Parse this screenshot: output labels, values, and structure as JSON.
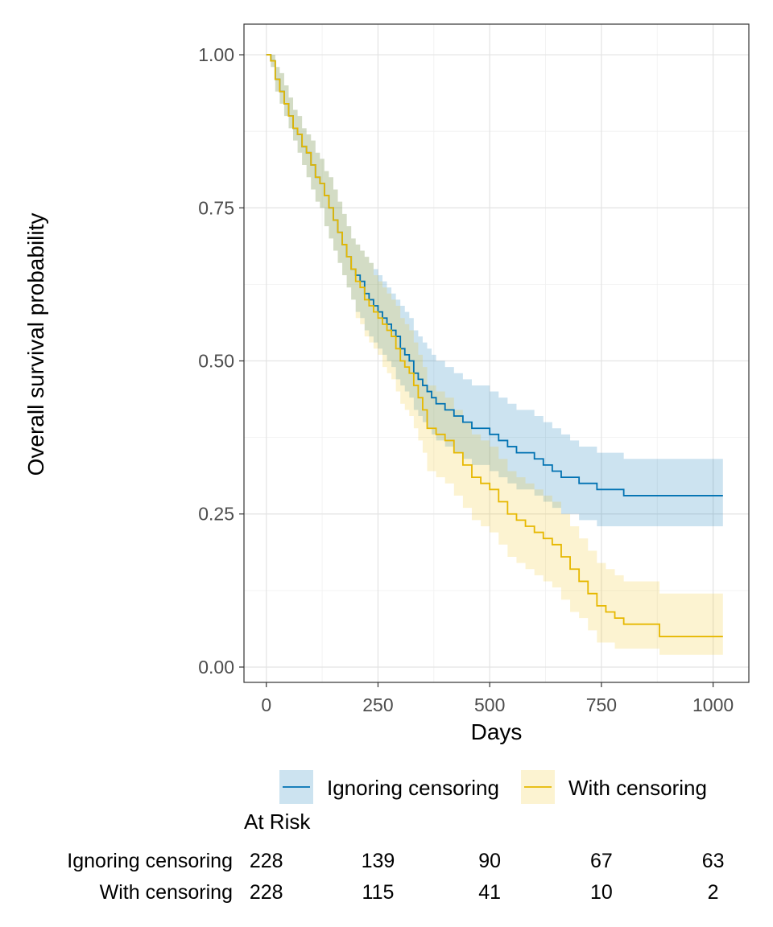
{
  "chart_data": {
    "type": "line",
    "subtype": "kaplan-meier-step",
    "xlabel": "Days",
    "ylabel": "Overall survival probability",
    "xlim": [
      -50,
      1080
    ],
    "ylim": [
      -0.025,
      1.05
    ],
    "x_ticks": [
      0,
      250,
      500,
      750,
      1000
    ],
    "x_tick_labels": [
      "0",
      "250",
      "500",
      "750",
      "1000"
    ],
    "y_ticks": [
      0,
      0.25,
      0.5,
      0.75,
      1.0
    ],
    "y_tick_labels": [
      "0.00",
      "0.25",
      "0.50",
      "0.75",
      "1.00"
    ],
    "grid": true,
    "legend_position": "bottom",
    "series": [
      {
        "name": "Ignoring censoring",
        "color": "#0072B2",
        "band_color": "#0072B2",
        "x": [
          0,
          10,
          20,
          30,
          40,
          50,
          60,
          70,
          80,
          90,
          100,
          110,
          120,
          130,
          140,
          150,
          160,
          170,
          180,
          190,
          200,
          210,
          220,
          230,
          240,
          250,
          260,
          270,
          280,
          290,
          300,
          310,
          320,
          330,
          340,
          350,
          360,
          370,
          380,
          400,
          420,
          440,
          460,
          480,
          500,
          520,
          540,
          560,
          580,
          600,
          620,
          640,
          660,
          680,
          700,
          720,
          740,
          760,
          780,
          800,
          850,
          880,
          950,
          1022
        ],
        "y": [
          1.0,
          0.99,
          0.96,
          0.94,
          0.92,
          0.9,
          0.88,
          0.87,
          0.85,
          0.84,
          0.82,
          0.8,
          0.79,
          0.77,
          0.75,
          0.73,
          0.71,
          0.69,
          0.67,
          0.65,
          0.64,
          0.63,
          0.61,
          0.6,
          0.59,
          0.58,
          0.57,
          0.56,
          0.55,
          0.54,
          0.52,
          0.51,
          0.5,
          0.48,
          0.47,
          0.46,
          0.45,
          0.44,
          0.43,
          0.42,
          0.41,
          0.4,
          0.39,
          0.39,
          0.38,
          0.37,
          0.36,
          0.35,
          0.35,
          0.34,
          0.33,
          0.32,
          0.31,
          0.31,
          0.3,
          0.3,
          0.29,
          0.29,
          0.29,
          0.28,
          0.28,
          0.28,
          0.28,
          0.28
        ],
        "lower": [
          1.0,
          0.98,
          0.94,
          0.92,
          0.9,
          0.88,
          0.86,
          0.84,
          0.82,
          0.8,
          0.78,
          0.76,
          0.75,
          0.72,
          0.7,
          0.68,
          0.66,
          0.64,
          0.62,
          0.6,
          0.58,
          0.57,
          0.55,
          0.54,
          0.53,
          0.52,
          0.51,
          0.5,
          0.49,
          0.47,
          0.46,
          0.45,
          0.44,
          0.42,
          0.41,
          0.4,
          0.39,
          0.38,
          0.37,
          0.36,
          0.35,
          0.34,
          0.33,
          0.33,
          0.32,
          0.31,
          0.3,
          0.29,
          0.29,
          0.28,
          0.27,
          0.26,
          0.25,
          0.25,
          0.24,
          0.24,
          0.23,
          0.23,
          0.23,
          0.23,
          0.23,
          0.23,
          0.23,
          0.23
        ],
        "upper": [
          1.0,
          1.0,
          0.98,
          0.97,
          0.95,
          0.93,
          0.91,
          0.9,
          0.88,
          0.87,
          0.86,
          0.84,
          0.83,
          0.81,
          0.8,
          0.78,
          0.76,
          0.74,
          0.72,
          0.7,
          0.69,
          0.68,
          0.67,
          0.66,
          0.65,
          0.64,
          0.63,
          0.62,
          0.61,
          0.6,
          0.59,
          0.58,
          0.57,
          0.55,
          0.54,
          0.53,
          0.52,
          0.51,
          0.5,
          0.49,
          0.48,
          0.47,
          0.46,
          0.46,
          0.45,
          0.44,
          0.43,
          0.42,
          0.42,
          0.41,
          0.4,
          0.39,
          0.38,
          0.37,
          0.36,
          0.36,
          0.35,
          0.35,
          0.35,
          0.34,
          0.34,
          0.34,
          0.34,
          0.34
        ]
      },
      {
        "name": "With censoring",
        "color": "#E6B800",
        "band_color": "#F0C419",
        "x": [
          0,
          10,
          20,
          30,
          40,
          50,
          60,
          70,
          80,
          90,
          100,
          110,
          120,
          130,
          140,
          150,
          160,
          170,
          180,
          190,
          200,
          210,
          220,
          230,
          240,
          250,
          260,
          270,
          280,
          290,
          300,
          310,
          320,
          330,
          340,
          350,
          360,
          380,
          400,
          420,
          440,
          460,
          480,
          500,
          520,
          540,
          560,
          580,
          600,
          620,
          640,
          660,
          680,
          700,
          720,
          740,
          760,
          780,
          800,
          850,
          880,
          950,
          1022
        ],
        "y": [
          1.0,
          0.99,
          0.96,
          0.94,
          0.92,
          0.9,
          0.88,
          0.87,
          0.85,
          0.84,
          0.82,
          0.8,
          0.79,
          0.77,
          0.75,
          0.73,
          0.71,
          0.69,
          0.67,
          0.65,
          0.63,
          0.62,
          0.6,
          0.59,
          0.58,
          0.57,
          0.56,
          0.55,
          0.54,
          0.52,
          0.5,
          0.49,
          0.48,
          0.46,
          0.44,
          0.42,
          0.39,
          0.38,
          0.37,
          0.35,
          0.33,
          0.31,
          0.3,
          0.29,
          0.27,
          0.25,
          0.24,
          0.23,
          0.22,
          0.21,
          0.2,
          0.18,
          0.16,
          0.14,
          0.12,
          0.1,
          0.09,
          0.08,
          0.07,
          0.07,
          0.05,
          0.05,
          0.05
        ],
        "lower": [
          1.0,
          0.98,
          0.94,
          0.92,
          0.9,
          0.88,
          0.86,
          0.84,
          0.82,
          0.8,
          0.78,
          0.76,
          0.75,
          0.72,
          0.7,
          0.68,
          0.66,
          0.64,
          0.62,
          0.6,
          0.57,
          0.56,
          0.54,
          0.53,
          0.52,
          0.51,
          0.49,
          0.48,
          0.47,
          0.45,
          0.43,
          0.42,
          0.41,
          0.39,
          0.37,
          0.35,
          0.32,
          0.31,
          0.3,
          0.28,
          0.26,
          0.24,
          0.23,
          0.22,
          0.2,
          0.18,
          0.17,
          0.16,
          0.15,
          0.14,
          0.13,
          0.11,
          0.09,
          0.08,
          0.06,
          0.04,
          0.04,
          0.03,
          0.03,
          0.03,
          0.02,
          0.02,
          0.02
        ],
        "upper": [
          1.0,
          1.0,
          0.98,
          0.97,
          0.95,
          0.93,
          0.91,
          0.9,
          0.88,
          0.87,
          0.86,
          0.84,
          0.83,
          0.81,
          0.8,
          0.78,
          0.76,
          0.74,
          0.72,
          0.7,
          0.69,
          0.68,
          0.67,
          0.66,
          0.64,
          0.63,
          0.62,
          0.61,
          0.6,
          0.59,
          0.57,
          0.56,
          0.55,
          0.53,
          0.51,
          0.49,
          0.46,
          0.45,
          0.44,
          0.42,
          0.4,
          0.38,
          0.37,
          0.36,
          0.34,
          0.32,
          0.31,
          0.3,
          0.29,
          0.28,
          0.27,
          0.25,
          0.23,
          0.21,
          0.19,
          0.17,
          0.16,
          0.15,
          0.14,
          0.14,
          0.12,
          0.12,
          0.12
        ]
      }
    ],
    "risk_table": {
      "title": "At Risk",
      "time_points": [
        0,
        250,
        500,
        750,
        1000
      ],
      "rows": [
        {
          "label": "Ignoring censoring",
          "counts": [
            "228",
            "139",
            "90",
            "67",
            "63"
          ]
        },
        {
          "label": "With censoring",
          "counts": [
            "228",
            "115",
            "41",
            "10",
            "2"
          ]
        }
      ]
    }
  }
}
